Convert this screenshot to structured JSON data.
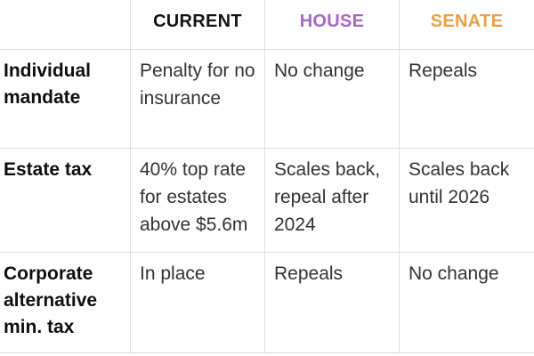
{
  "table": {
    "headers": [
      {
        "label": "",
        "color": "#000000"
      },
      {
        "label": "CURRENT",
        "color": "#131313"
      },
      {
        "label": "HOUSE",
        "color": "#a768be"
      },
      {
        "label": "SENATE",
        "color": "#e9a04a"
      }
    ],
    "rows": [
      {
        "label": "Individual mandate",
        "current": "Penalty for no insurance",
        "house": "No change",
        "senate": "Repeals"
      },
      {
        "label": "Estate tax",
        "current": "40% top rate for estates above $5.6m",
        "house": "Scales back, repeal after 2024",
        "senate": "Scales back until 2026"
      },
      {
        "label": "Corporate alternative min. tax",
        "current": "In place",
        "house": "Repeals",
        "senate": "No change"
      }
    ]
  },
  "colors": {
    "background": "#ffffff",
    "gridline": "#dedede",
    "body_text": "#333333",
    "label_text": "#0f0f0f",
    "header_current": "#131313",
    "header_house": "#a768be",
    "header_senate": "#e9a04a"
  }
}
